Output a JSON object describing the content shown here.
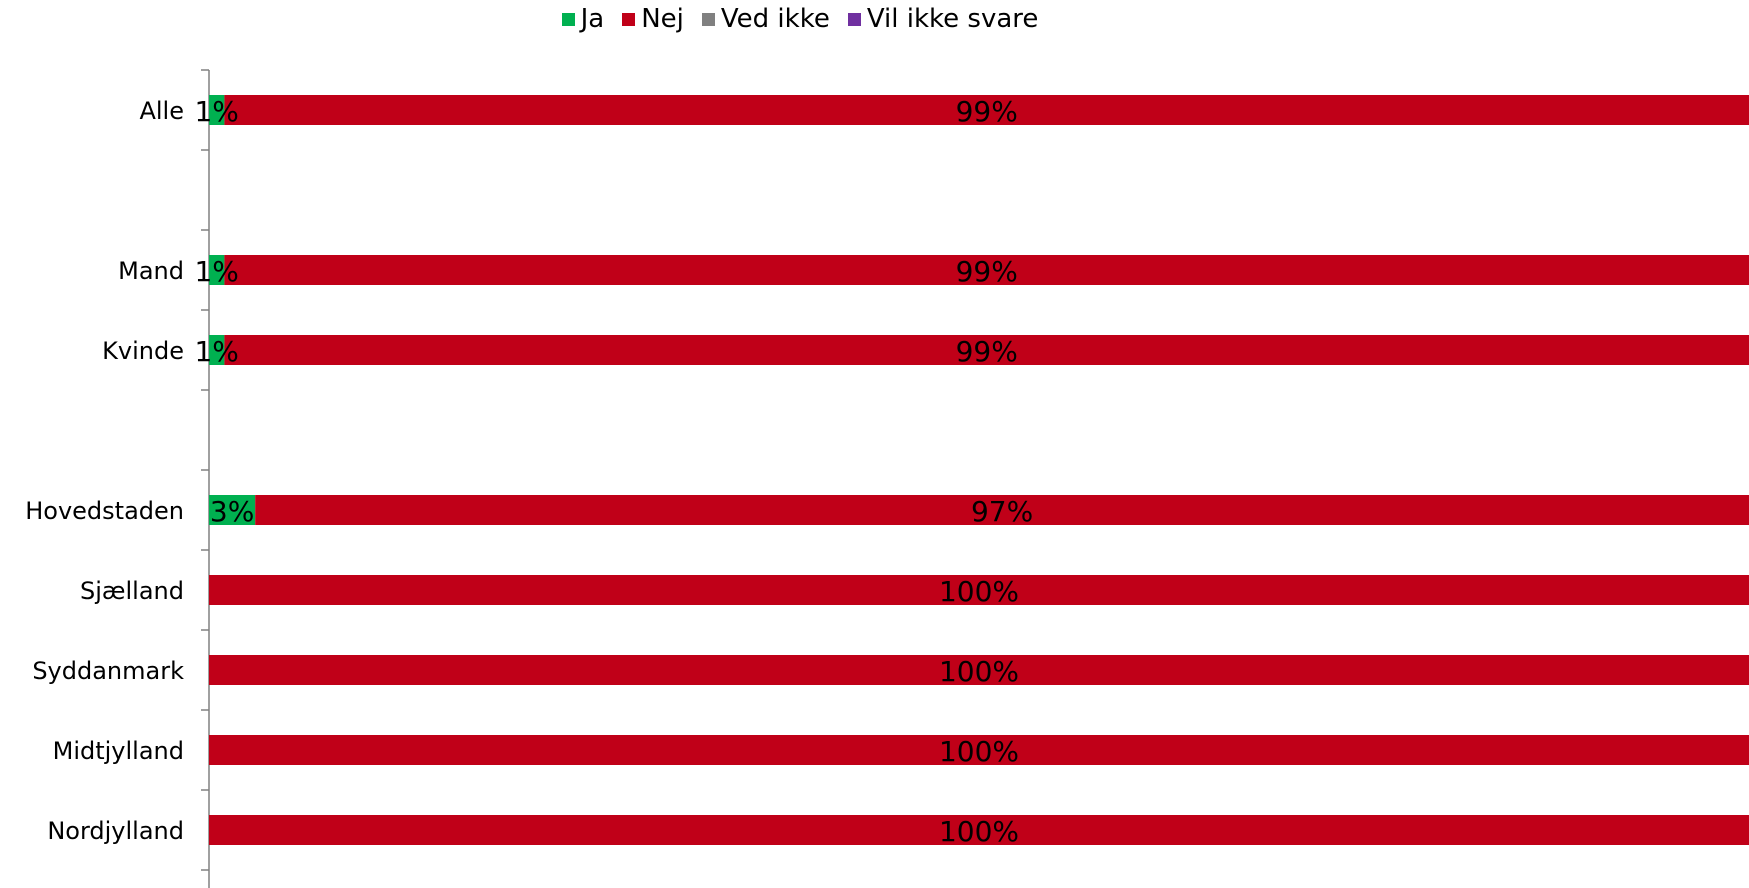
{
  "chart_data": {
    "type": "bar",
    "orientation": "horizontal",
    "stacked": true,
    "legend_position": "top",
    "categories": [
      "Alle",
      "",
      "Mand",
      "Kvinde",
      "",
      "Hovedstaden",
      "Sjælland",
      "Syddanmark",
      "Midtjylland",
      "Nordjylland"
    ],
    "series": [
      {
        "name": "Ja",
        "color": "#00b050",
        "values": [
          1,
          null,
          1,
          1,
          null,
          3,
          0,
          0,
          0,
          0
        ],
        "labels": [
          "1%",
          "",
          "1%",
          "1%",
          "",
          "3%",
          "",
          "",
          "",
          ""
        ]
      },
      {
        "name": "Nej",
        "color": "#c00018",
        "values": [
          99,
          null,
          99,
          99,
          null,
          97,
          100,
          100,
          100,
          100
        ],
        "labels": [
          "99%",
          "",
          "99%",
          "99%",
          "",
          "97%",
          "100%",
          "100%",
          "100%",
          "100%"
        ]
      },
      {
        "name": "Ved ikke",
        "color": "#808080",
        "values": [
          0,
          null,
          0,
          0,
          null,
          0,
          0,
          0,
          0,
          0
        ],
        "labels": [
          "",
          "",
          "",
          "",
          "",
          "",
          "",
          "",
          "",
          ""
        ]
      },
      {
        "name": "Vil ikke svare",
        "color": "#7030a0",
        "values": [
          0,
          null,
          0,
          0,
          null,
          0,
          0,
          0,
          0,
          0
        ],
        "labels": [
          "",
          "",
          "",
          "",
          "",
          "",
          "",
          "",
          "",
          ""
        ]
      }
    ],
    "xlim": [
      0,
      100
    ]
  }
}
